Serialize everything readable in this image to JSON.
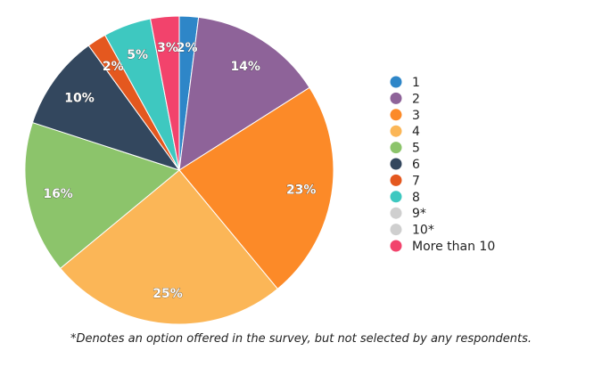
{
  "chart_data": {
    "type": "pie",
    "slices": [
      {
        "name": "1",
        "value": 2,
        "label": "2%",
        "color": "#2e86c8"
      },
      {
        "name": "2",
        "value": 14,
        "label": "14%",
        "color": "#8e6399"
      },
      {
        "name": "3",
        "value": 23,
        "label": "23%",
        "color": "#fc8a28"
      },
      {
        "name": "4",
        "value": 25,
        "label": "25%",
        "color": "#fbb657"
      },
      {
        "name": "5",
        "value": 16,
        "label": "16%",
        "color": "#8cc46b"
      },
      {
        "name": "6",
        "value": 10,
        "label": "10%",
        "color": "#33475e"
      },
      {
        "name": "7",
        "value": 2,
        "label": "2%",
        "color": "#e4581f"
      },
      {
        "name": "8",
        "value": 5,
        "label": "5%",
        "color": "#3ec8c0"
      },
      {
        "name": "9*",
        "value": 0,
        "label": "",
        "color": "#cfcfcf"
      },
      {
        "name": "10*",
        "value": 0,
        "label": "",
        "color": "#cfcfcf"
      },
      {
        "name": "More than 10",
        "value": 3,
        "label": "3%",
        "color": "#f2436c"
      }
    ],
    "legend_position": "right"
  },
  "footnote": "*Denotes an option offered in the survey, but not selected by any respondents."
}
